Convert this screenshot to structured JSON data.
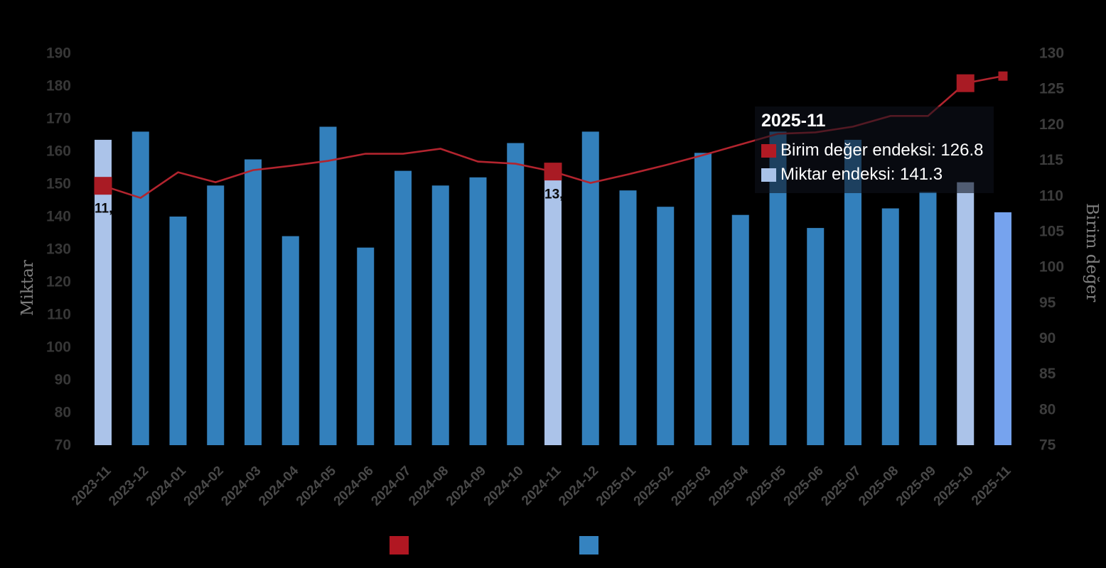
{
  "background": "#000000",
  "chart_data": {
    "type": "combo",
    "categories": [
      "2023-11",
      "2023-12",
      "2024-01",
      "2024-02",
      "2024-03",
      "2024-04",
      "2024-05",
      "2024-06",
      "2024-07",
      "2024-08",
      "2024-09",
      "2024-10",
      "2024-11",
      "2024-12",
      "2025-01",
      "2025-02",
      "2025-03",
      "2025-04",
      "2025-05",
      "2025-06",
      "2025-07",
      "2025-08",
      "2025-09",
      "2025-10",
      "2025-11"
    ],
    "series": [
      {
        "name": "Miktar endeksi",
        "type": "bar",
        "axis": "left",
        "values": [
          163.5,
          166,
          140,
          149.5,
          157.5,
          134,
          167.5,
          130.5,
          154,
          149.5,
          152,
          162.5,
          154,
          166,
          148,
          143,
          159.5,
          140.5,
          166,
          136.5,
          163.5,
          142.5,
          147.5,
          150.5,
          141.3
        ],
        "color": "#3380bc",
        "highlight_color": "#abc3e9",
        "highlight_indices": [
          0,
          12,
          23
        ],
        "current_color": "#76a3ee",
        "current_index": 24
      },
      {
        "name": "Birim değer endeksi",
        "type": "line",
        "axis": "right",
        "values": [
          111.4,
          109.7,
          113.3,
          111.9,
          113.6,
          114.2,
          114.9,
          115.9,
          115.9,
          116.6,
          114.8,
          114.5,
          113.4,
          111.8,
          113.0,
          114.3,
          115.7,
          117.2,
          118.7,
          118.9,
          119.7,
          121.2,
          121.2,
          125.8,
          126.8
        ],
        "color": "#b2242e",
        "marker_color": "#a91b24",
        "markers": [
          {
            "index": 0,
            "size": 25
          },
          {
            "index": 12,
            "size": 25
          },
          {
            "index": 23,
            "size": 25
          },
          {
            "index": 24,
            "size": 13
          }
        ]
      }
    ],
    "left_axis": {
      "title": "Miktar",
      "min": 70,
      "max": 190,
      "step": 10,
      "ticks": [
        "70",
        "80",
        "90",
        "100",
        "110",
        "120",
        "130",
        "140",
        "150",
        "160",
        "170",
        "180",
        "190"
      ]
    },
    "right_axis": {
      "title": "Birim değer",
      "min": 75,
      "max": 130,
      "step": 5,
      "ticks": [
        "75",
        "80",
        "85",
        "90",
        "95",
        "100",
        "105",
        "110",
        "115",
        "120",
        "125",
        "130"
      ]
    },
    "point_labels": [
      {
        "index": 0,
        "text": "11,"
      },
      {
        "index": 12,
        "text": "13,"
      }
    ],
    "grid": false,
    "legend_position": "bottom",
    "legend": [
      {
        "color": "#b11722"
      },
      {
        "color": "#3583c0"
      }
    ]
  },
  "tooltip": {
    "title": "2025-11",
    "rows": [
      {
        "swatch_color": "#b11a24",
        "text": "Birim değer endeksi: 126.8"
      },
      {
        "swatch_color": "#a9c2e8",
        "text": "Miktar endeksi: 141.3"
      }
    ]
  }
}
